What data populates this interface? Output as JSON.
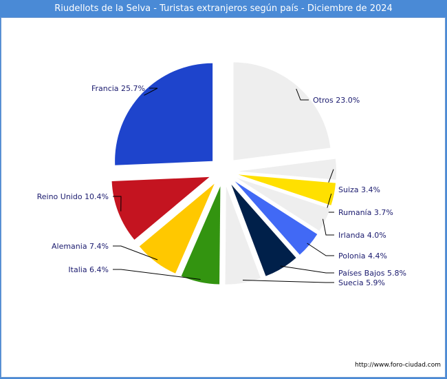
{
  "chart_data": {
    "type": "pie",
    "title": "Riudellots de la Selva - Turistas extranjeros según país - Diciembre de 2024",
    "source": "http://www.foro-ciudad.com",
    "slices": [
      {
        "name": "Otros",
        "label": "Otros 23.0%",
        "value": 23.0,
        "color": "#eeeeee"
      },
      {
        "name": "Suiza",
        "label": "Suiza 3.4%",
        "value": 3.4,
        "color": "#eeeeee"
      },
      {
        "name": "Rumanía",
        "label": "Rumanía 3.7%",
        "value": 3.7,
        "color": "#ffe000"
      },
      {
        "name": "Irlanda",
        "label": "Irlanda 4.0%",
        "value": 4.0,
        "color": "#eeeeee"
      },
      {
        "name": "Polonia",
        "label": "Polonia 4.4%",
        "value": 4.4,
        "color": "#4169f5"
      },
      {
        "name": "Países Bajos",
        "label": "Países Bajos 5.8%",
        "value": 5.8,
        "color": "#00204a"
      },
      {
        "name": "Suecia",
        "label": "Suecia 5.9%",
        "value": 5.9,
        "color": "#eeeeee"
      },
      {
        "name": "Italia",
        "label": "Italia 6.4%",
        "value": 6.4,
        "color": "#339410"
      },
      {
        "name": "Alemania",
        "label": "Alemania 7.4%",
        "value": 7.4,
        "color": "#ffc800"
      },
      {
        "name": "Reino Unido",
        "label": "Reino Unido 10.4%",
        "value": 10.4,
        "color": "#c41420"
      },
      {
        "name": "Francia",
        "label": "Francia 25.7%",
        "value": 25.7,
        "color": "#1e44cc"
      }
    ]
  }
}
